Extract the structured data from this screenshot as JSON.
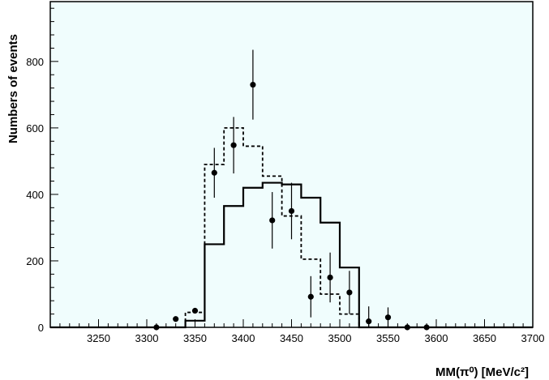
{
  "chart_data": {
    "type": "scatter",
    "xlabel": "MM(π⁰) [MeV/c²]",
    "ylabel": "Numbers of events",
    "xlim": [
      3200,
      3700
    ],
    "ylim": [
      0,
      980
    ],
    "x_ticks": [
      "3250",
      "3300",
      "3350",
      "3400",
      "3450",
      "3500",
      "3550",
      "3600",
      "3650",
      "3700"
    ],
    "y_ticks": [
      "0",
      "200",
      "400",
      "600",
      "800"
    ],
    "grid": false,
    "legend": "none",
    "colors": {
      "plot_bg": "#f0fdfd",
      "line": "#000000"
    },
    "series": [
      {
        "kind": "histogram-solid",
        "bin_edges": [
          3200,
          3340,
          3350,
          3360,
          3370,
          3380,
          3390,
          3400,
          3410,
          3420,
          3430,
          3440,
          3450,
          3460,
          3470,
          3480,
          3490,
          3500,
          3510,
          3520,
          3700
        ],
        "values": [
          0,
          20,
          20,
          250,
          250,
          365,
          365,
          420,
          420,
          435,
          435,
          430,
          430,
          390,
          390,
          315,
          315,
          180,
          180,
          0
        ]
      },
      {
        "kind": "histogram-dashed",
        "bin_edges": [
          3340,
          3350,
          3360,
          3370,
          3380,
          3390,
          3400,
          3410,
          3420,
          3430,
          3440,
          3450,
          3460,
          3470,
          3480,
          3490,
          3500,
          3510,
          3520
        ],
        "values": [
          45,
          45,
          490,
          490,
          600,
          600,
          545,
          545,
          455,
          455,
          335,
          335,
          205,
          205,
          100,
          100,
          40,
          40
        ]
      },
      {
        "kind": "points-with-errors",
        "points": [
          {
            "x": 3310,
            "y": 0,
            "err": 0
          },
          {
            "x": 3330,
            "y": 25,
            "err": 0
          },
          {
            "x": 3350,
            "y": 50,
            "err": 8
          },
          {
            "x": 3370,
            "y": 465,
            "err": 75
          },
          {
            "x": 3390,
            "y": 548,
            "err": 85
          },
          {
            "x": 3410,
            "y": 730,
            "err": 105
          },
          {
            "x": 3430,
            "y": 322,
            "err": 85
          },
          {
            "x": 3450,
            "y": 350,
            "err": 85
          },
          {
            "x": 3470,
            "y": 92,
            "err": 62
          },
          {
            "x": 3490,
            "y": 150,
            "err": 75
          },
          {
            "x": 3510,
            "y": 105,
            "err": 65
          },
          {
            "x": 3530,
            "y": 18,
            "err": 45
          },
          {
            "x": 3550,
            "y": 30,
            "err": 30
          },
          {
            "x": 3570,
            "y": 0,
            "err": 0
          },
          {
            "x": 3590,
            "y": 0,
            "err": 0
          }
        ]
      }
    ]
  }
}
